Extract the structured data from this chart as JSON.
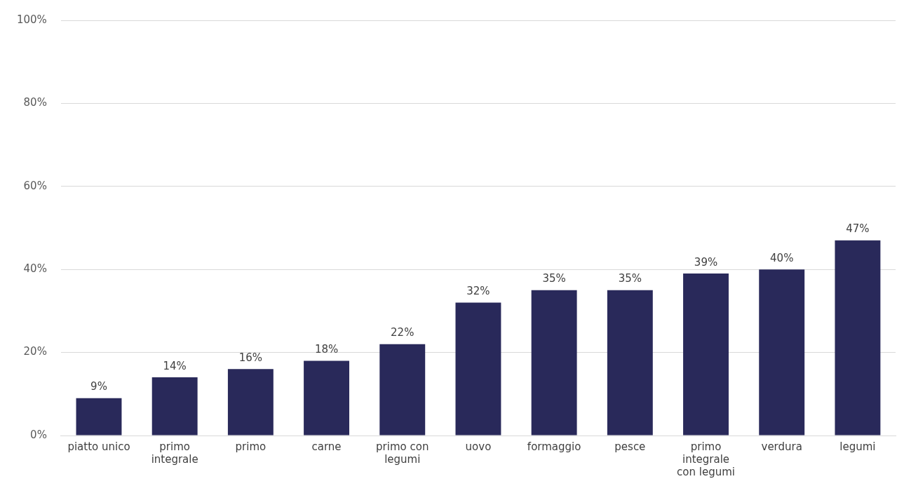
{
  "chart_data": {
    "type": "bar",
    "categories": [
      "piatto unico",
      "primo integrale",
      "primo",
      "carne",
      "primo con legumi",
      "uovo",
      "formaggio",
      "pesce",
      "primo integrale con legumi",
      "verdura",
      "legumi"
    ],
    "values": [
      9,
      14,
      16,
      18,
      22,
      32,
      35,
      35,
      39,
      40,
      47
    ],
    "value_labels": [
      "9%",
      "14%",
      "16%",
      "18%",
      "22%",
      "32%",
      "35%",
      "35%",
      "39%",
      "40%",
      "47%"
    ],
    "color": "#29295a",
    "ylim": [
      0,
      100
    ],
    "yticks": [
      {
        "value": 0,
        "label": "0%"
      },
      {
        "value": 20,
        "label": "20%"
      },
      {
        "value": 40,
        "label": "40%"
      },
      {
        "value": 60,
        "label": "60%"
      },
      {
        "value": 80,
        "label": "80%"
      },
      {
        "value": 100,
        "label": "100%"
      }
    ],
    "grid": "y",
    "legend": false
  }
}
